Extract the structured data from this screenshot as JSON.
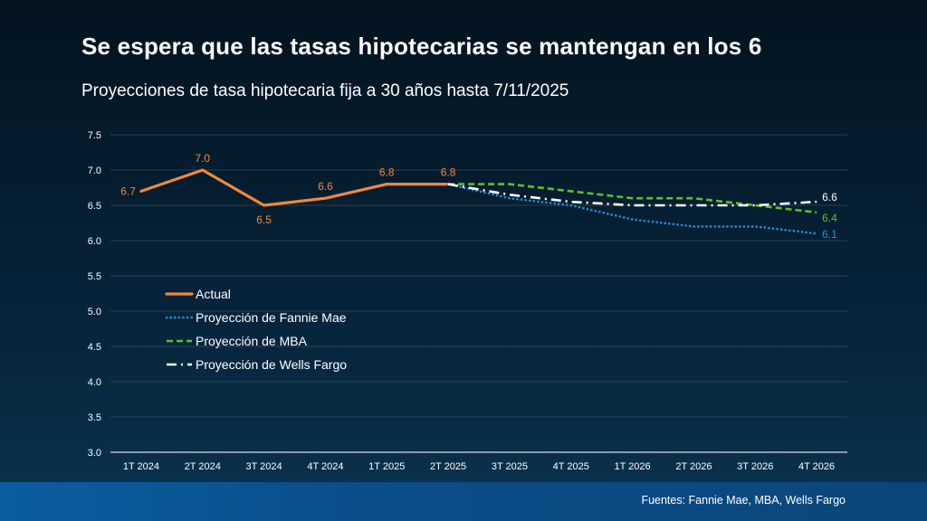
{
  "header": {
    "title": "Se espera que las tasas hipotecarias se mantengan en los 6",
    "subtitle": "Proyecciones de tasa hipotecaria fija a 30 años hasta 7/11/2025"
  },
  "footer": {
    "source": "Fuentes: Fannie Mae, MBA, Wells Fargo"
  },
  "colors": {
    "actual": "#f0883a",
    "fannie": "#1e90e0",
    "mba": "#5cc12e",
    "wells": "#ffffff",
    "grid": "#3a4a5a",
    "tick": "#ffffff"
  },
  "chart_data": {
    "type": "line",
    "categories": [
      "1T 2024",
      "2T 2024",
      "3T 2024",
      "4T 2024",
      "1T 2025",
      "2T 2025",
      "3T 2025",
      "4T 2025",
      "1T 2026",
      "2T 2026",
      "3T 2026",
      "4T 2026"
    ],
    "ylim": [
      3.0,
      7.5
    ],
    "yticks": [
      "3.0",
      "3.5",
      "4.0",
      "4.5",
      "5.0",
      "5.5",
      "6.0",
      "6.5",
      "7.0",
      "7.5"
    ],
    "grid": true,
    "legend_position": "left-middle",
    "series": [
      {
        "name": "Actual",
        "style": "solid",
        "values": [
          6.7,
          7.0,
          6.5,
          6.6,
          6.8,
          6.8,
          null,
          null,
          null,
          null,
          null,
          null
        ],
        "labels": [
          "6.7",
          "7.0",
          "6.5",
          "6.6",
          "6.8",
          "6.8",
          "",
          "",
          "",
          "",
          "",
          ""
        ]
      },
      {
        "name": "Proyección de Fannie Mae",
        "style": "dotted",
        "values": [
          null,
          null,
          null,
          null,
          null,
          6.8,
          6.6,
          6.5,
          6.3,
          6.2,
          6.2,
          6.1
        ],
        "labels": [
          "",
          "",
          "",
          "",
          "",
          "",
          "",
          "",
          "",
          "",
          "",
          "6.1"
        ]
      },
      {
        "name": "Proyección de MBA",
        "style": "dashed",
        "values": [
          null,
          null,
          null,
          null,
          null,
          6.8,
          6.8,
          6.7,
          6.6,
          6.6,
          6.5,
          6.4
        ],
        "labels": [
          "",
          "",
          "",
          "",
          "",
          "",
          "",
          "",
          "",
          "",
          "",
          "6.4"
        ]
      },
      {
        "name": "Proyección de Wells Fargo",
        "style": "dashdot",
        "values": [
          null,
          null,
          null,
          null,
          null,
          6.8,
          6.65,
          6.55,
          6.5,
          6.5,
          6.5,
          6.55
        ],
        "labels": [
          "",
          "",
          "",
          "",
          "",
          "",
          "",
          "",
          "",
          "",
          "",
          "6.6"
        ]
      }
    ]
  }
}
